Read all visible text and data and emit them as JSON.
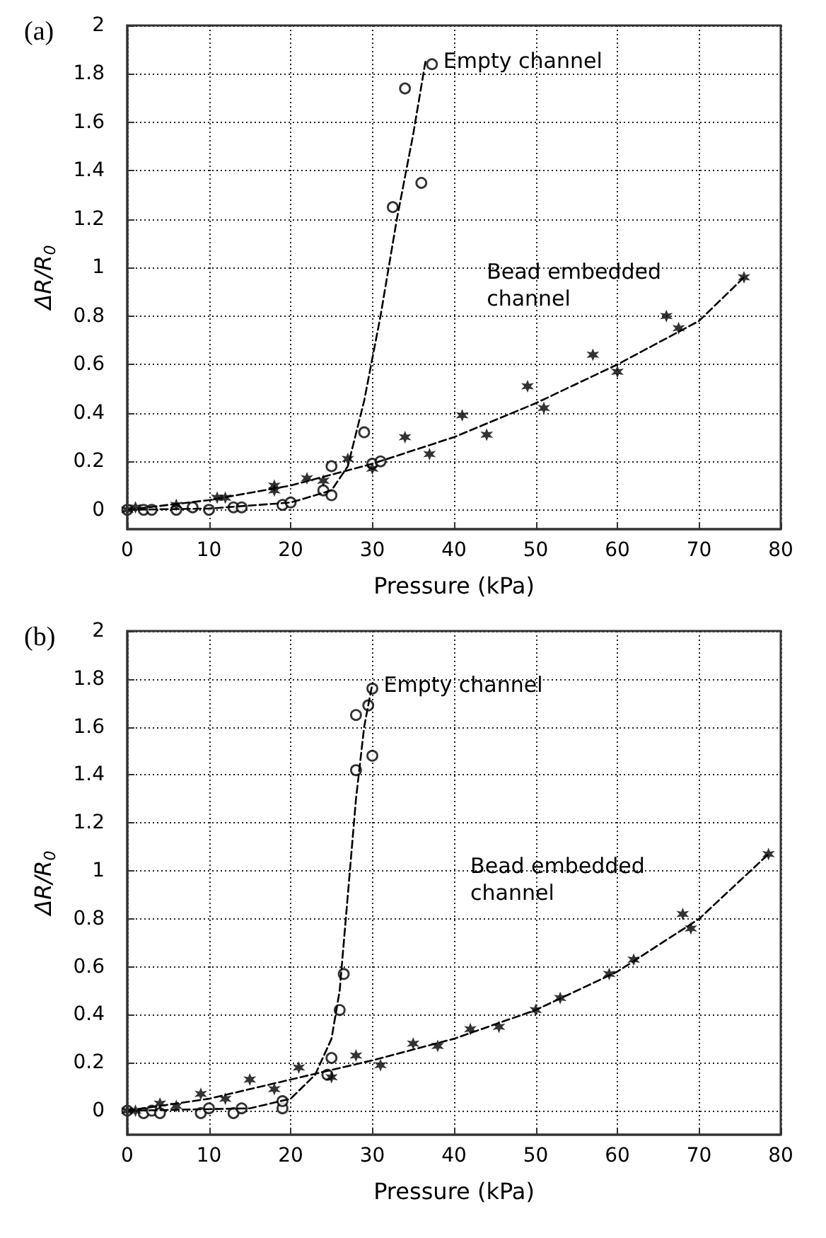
{
  "chart_data": [
    {
      "type": "scatter",
      "title": "(a)",
      "xlabel": "Pressure (kPa)",
      "ylabel": "ΔR/R$_{0}$",
      "xlim": [
        0,
        80
      ],
      "xticks": [
        0,
        10,
        20,
        30,
        40,
        50,
        60,
        70,
        80
      ],
      "ylim": [
        -0.08,
        2
      ],
      "yticks": [
        0,
        0.2,
        0.4,
        0.6,
        0.8,
        1,
        1.2,
        1.4,
        1.6,
        1.8,
        2
      ],
      "grid": true,
      "series": [
        {
          "name": "Empty channel",
          "color": "#000000",
          "x": [
            0,
            2,
            3,
            6,
            8,
            10,
            13,
            14,
            19,
            20,
            24,
            25,
            25,
            29,
            30,
            31,
            32.5,
            34,
            36,
            37.3
          ],
          "values": [
            0,
            0,
            0,
            0,
            0.01,
            0,
            0.01,
            0.01,
            0.02,
            0.03,
            0.08,
            0.06,
            0.18,
            0.32,
            0.19,
            0.2,
            1.25,
            1.74,
            1.35,
            1.84
          ]
        },
        {
          "name": "Bead embedded\nchannel",
          "color": "#000000",
          "x": [
            0,
            1,
            6,
            11,
            12,
            18,
            18,
            22,
            24,
            27,
            30,
            34,
            37,
            41,
            44,
            49,
            51,
            57,
            60,
            66,
            67.5,
            75.5
          ],
          "values": [
            0,
            0.01,
            0.02,
            0.05,
            0.05,
            0.1,
            0.08,
            0.13,
            0.12,
            0.21,
            0.17,
            0.3,
            0.23,
            0.39,
            0.31,
            0.51,
            0.42,
            0.64,
            0.57,
            0.8,
            0.75,
            0.96
          ]
        },
        {
          "type": "line",
          "line_style": "dashed",
          "marker": "none",
          "color": "#000000",
          "x": [
            0,
            10,
            20,
            25,
            27,
            29,
            31,
            33,
            35,
            36.5
          ],
          "values": [
            0,
            0.005,
            0.03,
            0.08,
            0.18,
            0.45,
            0.8,
            1.2,
            1.55,
            1.85
          ]
        },
        {
          "type": "line",
          "line_style": "dashed",
          "marker": "none",
          "color": "#000000",
          "x": [
            0,
            10,
            20,
            30,
            40,
            50,
            60,
            70,
            75.5
          ],
          "values": [
            0,
            0.04,
            0.1,
            0.19,
            0.3,
            0.44,
            0.6,
            0.78,
            0.96
          ]
        }
      ]
    },
    {
      "type": "scatter",
      "title": "(b)",
      "xlabel": "Pressure (kPa)",
      "ylabel": "ΔR/R$_{0}$",
      "xlim": [
        0,
        80
      ],
      "xticks": [
        0,
        10,
        20,
        30,
        40,
        50,
        60,
        70,
        80
      ],
      "ylim": [
        -0.1,
        2
      ],
      "yticks": [
        0,
        0.2,
        0.4,
        0.6,
        0.8,
        1,
        1.2,
        1.4,
        1.6,
        1.8,
        2
      ],
      "grid": true,
      "series": [
        {
          "name": "Empty channel",
          "color": "#000000",
          "x": [
            0,
            2,
            3,
            4,
            9,
            10,
            13,
            14,
            19,
            19,
            24.5,
            25,
            26,
            26.5,
            28,
            28,
            29.5,
            30,
            30
          ],
          "values": [
            0,
            -0.01,
            0,
            -0.01,
            -0.01,
            0.01,
            -0.01,
            0.01,
            0.01,
            0.04,
            0.15,
            0.22,
            0.42,
            0.57,
            1.42,
            1.65,
            1.69,
            1.48,
            1.76
          ]
        },
        {
          "name": "Bead embedded\nchannel",
          "color": "#000000",
          "x": [
            0,
            1,
            4,
            6,
            9,
            12,
            15,
            18,
            21,
            25,
            28,
            31,
            35,
            38,
            42,
            45.5,
            50,
            53,
            59,
            62,
            68,
            69,
            78.5
          ],
          "values": [
            0,
            0,
            0.03,
            0.02,
            0.07,
            0.05,
            0.13,
            0.09,
            0.18,
            0.14,
            0.23,
            0.19,
            0.28,
            0.27,
            0.34,
            0.35,
            0.42,
            0.47,
            0.57,
            0.63,
            0.82,
            0.76,
            1.07
          ]
        },
        {
          "type": "line",
          "line_style": "dashed",
          "marker": "none",
          "color": "#000000",
          "x": [
            0,
            15,
            20,
            23,
            25,
            26,
            27,
            28,
            29,
            30
          ],
          "values": [
            0,
            0.01,
            0.05,
            0.15,
            0.3,
            0.5,
            0.9,
            1.3,
            1.6,
            1.78
          ]
        },
        {
          "type": "line",
          "line_style": "dashed",
          "marker": "none",
          "color": "#000000",
          "x": [
            0,
            10,
            20,
            30,
            40,
            50,
            60,
            70,
            78.5
          ],
          "values": [
            0,
            0.05,
            0.13,
            0.21,
            0.3,
            0.42,
            0.58,
            0.8,
            1.07
          ]
        }
      ]
    }
  ]
}
